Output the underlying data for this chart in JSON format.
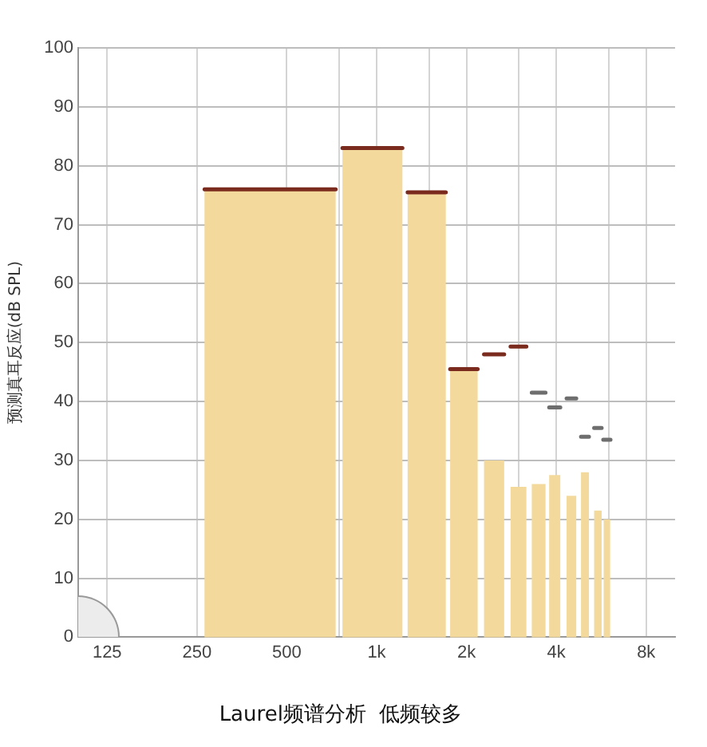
{
  "chart_data": {
    "type": "histogram",
    "title": "Laurel频谱分析  低频较多",
    "ylabel": "预测真耳反应(dB SPL)",
    "log": "x",
    "grid": true,
    "legend": false,
    "xlim": [
      100,
      10000
    ],
    "xticks": [
      125,
      250,
      500,
      {
        "value": 750,
        "label": null
      },
      {
        "value": 1000,
        "label": "1k"
      },
      {
        "value": 1500,
        "label": null
      },
      {
        "value": 2000,
        "label": "2k"
      },
      {
        "value": 3000,
        "label": null
      },
      {
        "value": 4000,
        "label": "4k"
      },
      {
        "value": 6000,
        "label": null
      },
      {
        "value": 8000,
        "label": "8k"
      }
    ],
    "ylim": [
      0,
      100
    ],
    "yticks": [
      0,
      10,
      20,
      30,
      40,
      50,
      60,
      70,
      80,
      90,
      100
    ],
    "bins": [
      265,
      729,
      768,
      1220,
      1270,
      1705,
      1763,
      2180,
      2290,
      2675,
      2810,
      3175,
      3310,
      3680,
      3785,
      4125,
      4330,
      4665,
      4840,
      5145,
      5355,
      5675,
      5765,
      6060
    ],
    "series": [
      {
        "color": "#f3d99b",
        "values": [
          76,
          null,
          83,
          null,
          75.5,
          null,
          45.5,
          null,
          30,
          null,
          25.5,
          null,
          26,
          null,
          27.5,
          null,
          24,
          null,
          28,
          null,
          21.5,
          null,
          20
        ]
      },
      {
        "type": "line",
        "color": "#7b2b1e",
        "x": [
          265,
          729,
          749,
          768,
          1220,
          1245,
          1270,
          1705,
          1734,
          1763,
          2180,
          2235,
          2290,
          2675,
          2740,
          2810,
          3175
        ],
        "values": [
          76,
          76,
          null,
          83,
          83,
          null,
          75.5,
          75.5,
          null,
          45.5,
          45.5,
          null,
          48,
          48,
          null,
          49.3,
          49.3
        ]
      },
      {
        "type": "line",
        "color": "#6e6e6e",
        "x": [
          3310,
          3680,
          3730,
          3785,
          4125,
          4230,
          4330,
          4665,
          4750,
          4840,
          5145,
          5250,
          5355,
          5675,
          5710,
          5745,
          6075
        ],
        "values": [
          41.5,
          41.5,
          null,
          39,
          39,
          null,
          40.5,
          40.5,
          null,
          34,
          34,
          null,
          35.5,
          35.5,
          null,
          33.5,
          33.5
        ]
      }
    ]
  }
}
